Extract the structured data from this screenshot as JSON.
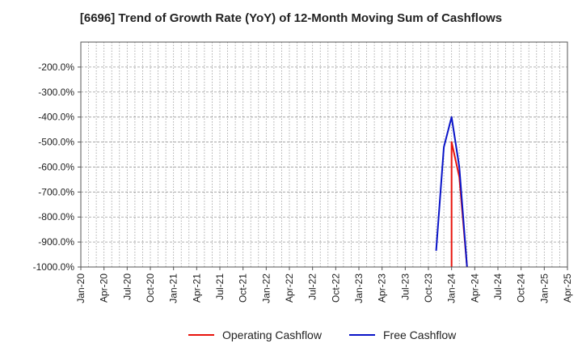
{
  "chart_data": {
    "type": "line",
    "title": "[6696]  Trend of Growth Rate (YoY) of 12-Month Moving Sum of Cashflows",
    "xlabel": "",
    "ylabel": "",
    "x_ticks": [
      "Jan-20",
      "Apr-20",
      "Jul-20",
      "Oct-20",
      "Jan-21",
      "Apr-21",
      "Jul-21",
      "Oct-21",
      "Jan-22",
      "Apr-22",
      "Jul-22",
      "Oct-22",
      "Jan-23",
      "Apr-23",
      "Jul-23",
      "Oct-23",
      "Jan-24",
      "Apr-24",
      "Jul-24",
      "Oct-24",
      "Jan-25",
      "Apr-25"
    ],
    "y_ticks": [
      -200,
      -300,
      -400,
      -500,
      -600,
      -700,
      -800,
      -900,
      -1000
    ],
    "y_tick_labels": [
      "-200.0%",
      "-300.0%",
      "-400.0%",
      "-500.0%",
      "-600.0%",
      "-700.0%",
      "-800.0%",
      "-900.0%",
      "-1000.0%"
    ],
    "ylim": [
      -1000,
      -100
    ],
    "grid": true,
    "legend_position": "bottom",
    "series": [
      {
        "name": "Operating Cashflow",
        "color": "#e8140c",
        "points": [
          [
            "Jan-24",
            -1000
          ],
          [
            "Jan-24",
            -500
          ],
          [
            "Feb-24",
            -640
          ],
          [
            "Mar-24",
            -1000
          ]
        ]
      },
      {
        "name": "Free Cashflow",
        "color": "#0a14c8",
        "points": [
          [
            "Nov-23",
            -935
          ],
          [
            "Dec-23",
            -520
          ],
          [
            "Jan-24",
            -400
          ],
          [
            "Feb-24",
            -600
          ],
          [
            "Mar-24",
            -1000
          ]
        ]
      }
    ]
  }
}
